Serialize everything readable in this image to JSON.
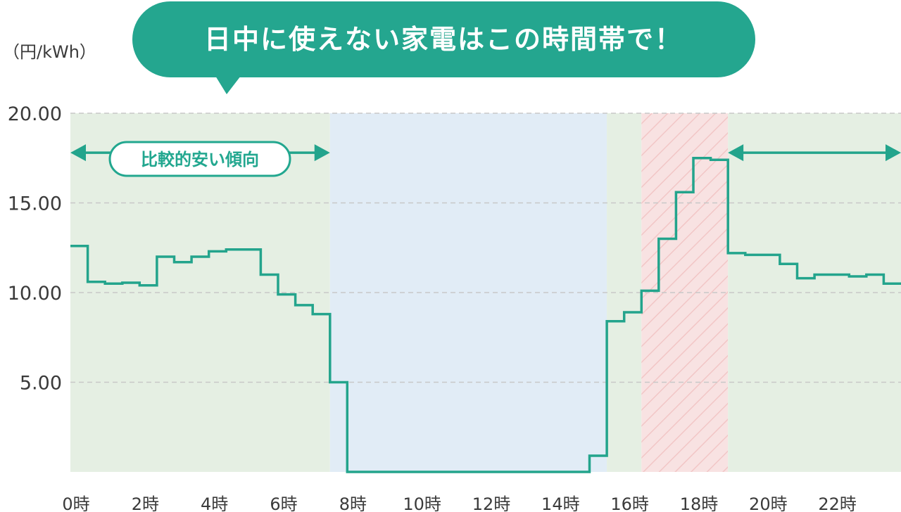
{
  "callout": {
    "text": "日中に使えない家電はこの時間帯で！"
  },
  "annotation": {
    "pill_label": "比較的安い傾向"
  },
  "colors": {
    "line": "#23a48c",
    "callout_bg": "#24a68f",
    "cheap_zone": "#e5efe3",
    "unavailable_zone": "#e1ecf6",
    "peak_zone": "#f8e2e2",
    "peak_hatch": "#f2c6c6",
    "grid": "#c8c8c8"
  },
  "chart_data": {
    "type": "line",
    "step": true,
    "ylabel": "（円/kWh）",
    "ylim": [
      0,
      20
    ],
    "yticks": [
      5,
      10,
      15,
      20
    ],
    "ytick_labels": [
      "5.00",
      "10.00",
      "15.00",
      "20.00"
    ],
    "xlim": [
      0,
      24
    ],
    "xticks": [
      0,
      2,
      4,
      6,
      8,
      10,
      12,
      14,
      16,
      18,
      20,
      22
    ],
    "xtick_labels": [
      "0時",
      "2時",
      "4時",
      "6時",
      "8時",
      "10時",
      "12時",
      "14時",
      "16時",
      "18時",
      "20時",
      "22時"
    ],
    "grid": "horizontal-dashed",
    "series": [
      {
        "x": [
          0,
          0.5,
          1,
          1.5,
          2,
          2.5,
          3,
          3.5,
          4,
          4.5,
          5,
          5.5,
          6,
          6.5,
          7,
          7.5,
          8,
          8.5,
          9,
          9.5,
          10,
          10.5,
          11,
          11.5,
          12,
          12.5,
          13,
          13.5,
          14,
          14.5,
          15,
          15.5,
          16,
          16.5,
          17,
          17.5,
          18,
          18.5,
          19,
          19.5,
          20,
          20.5,
          21,
          21.5,
          22,
          22.5,
          23,
          23.5
        ],
        "values": [
          12.6,
          10.6,
          10.5,
          10.55,
          10.4,
          12.0,
          11.7,
          12.0,
          12.3,
          12.4,
          12.4,
          11.0,
          9.9,
          9.3,
          8.8,
          5.0,
          0,
          0,
          0,
          0,
          0,
          0,
          0,
          0,
          0,
          0,
          0,
          0,
          0,
          0,
          0.9,
          8.4,
          8.9,
          10.1,
          13.0,
          15.6,
          17.5,
          17.4,
          12.2,
          12.1,
          12.1,
          11.6,
          10.8,
          11.0,
          11.0,
          10.9,
          11.0,
          10.5
        ]
      }
    ],
    "zones": [
      {
        "kind": "cheap",
        "from": 0,
        "to": 7.5
      },
      {
        "kind": "unavailable",
        "from": 7.5,
        "to": 15.5
      },
      {
        "kind": "cheap",
        "from": 15.5,
        "to": 16.5
      },
      {
        "kind": "peak",
        "from": 16.5,
        "to": 19
      },
      {
        "kind": "cheap",
        "from": 19,
        "to": 24
      }
    ],
    "arrows": [
      {
        "from": 0,
        "to": 7.5,
        "y": 17.8,
        "labeled": true
      },
      {
        "from": 19,
        "to": 24,
        "y": 17.8,
        "labeled": false
      }
    ]
  }
}
